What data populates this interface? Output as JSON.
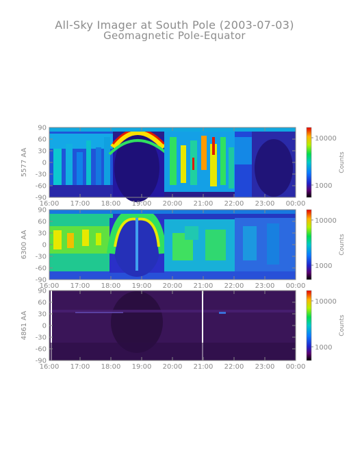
{
  "title": "All-Sky Imager at South Pole (2003-07-03)",
  "subtitle": "Geomagnetic Pole-Equator",
  "colors": {
    "axis": "#888888",
    "text": "#888888"
  },
  "chart_data": [
    {
      "type": "heatmap",
      "ylabel": "5577 AA",
      "y_ticks": [
        "90",
        "60",
        "30",
        "0",
        "-30",
        "-60",
        "-90"
      ],
      "ylim": [
        -90,
        90
      ],
      "x_ticks": [
        "16:00",
        "17:00",
        "18:00",
        "19:00",
        "20:00",
        "21:00",
        "22:00",
        "23:00",
        "00:00"
      ],
      "xlim": [
        "16:00",
        "00:00"
      ],
      "colorbar": {
        "label": "Counts",
        "ticks": [
          "10000",
          "1000"
        ],
        "scale": "log"
      }
    },
    {
      "type": "heatmap",
      "ylabel": "6300 AA",
      "y_ticks": [
        "90",
        "60",
        "30",
        "0",
        "-30",
        "-60",
        "-90"
      ],
      "ylim": [
        -90,
        90
      ],
      "x_ticks": [
        "16:00",
        "17:00",
        "18:00",
        "19:00",
        "20:00",
        "21:00",
        "22:00",
        "23:00",
        "00:00"
      ],
      "xlim": [
        "16:00",
        "00:00"
      ],
      "colorbar": {
        "label": "Counts",
        "ticks": [
          "10000",
          "1000"
        ],
        "scale": "log"
      }
    },
    {
      "type": "heatmap",
      "ylabel": "4861 AA",
      "y_ticks": [
        "90",
        "60",
        "30",
        "0",
        "-30",
        "-60",
        "-90"
      ],
      "ylim": [
        -90,
        90
      ],
      "x_ticks": [
        "16:00",
        "17:00",
        "18:00",
        "19:00",
        "20:00",
        "21:00",
        "22:00",
        "23:00",
        "00:00"
      ],
      "xlim": [
        "16:00",
        "00:00"
      ],
      "colorbar": {
        "label": "Counts",
        "ticks": [
          "10000",
          "1000"
        ],
        "scale": "log"
      }
    }
  ]
}
